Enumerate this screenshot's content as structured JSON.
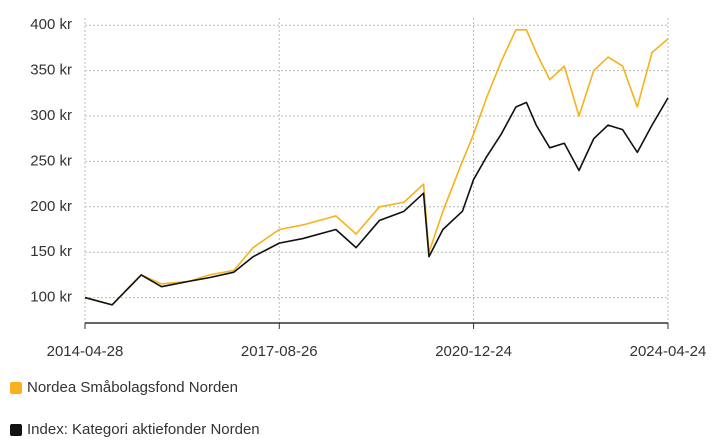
{
  "chart_data": {
    "type": "line",
    "x": [
      "2014-04-28",
      "2014-10-15",
      "2015-04-15",
      "2015-08-20",
      "2016-02-10",
      "2016-06-15",
      "2016-11-15",
      "2017-03-15",
      "2017-08-26",
      "2018-01-20",
      "2018-08-15",
      "2018-12-20",
      "2019-05-15",
      "2019-10-15",
      "2020-02-15",
      "2020-03-20",
      "2020-06-15",
      "2020-10-15",
      "2020-12-24",
      "2021-03-15",
      "2021-06-15",
      "2021-09-15",
      "2021-11-20",
      "2022-01-20",
      "2022-04-15",
      "2022-07-15",
      "2022-10-15",
      "2023-01-15",
      "2023-04-15",
      "2023-07-15",
      "2023-10-15",
      "2024-01-15",
      "2024-04-24"
    ],
    "series": [
      {
        "name": "Nordea Småbolagsfond Norden",
        "color": "#f5b21b",
        "values": [
          100,
          92,
          125,
          115,
          118,
          125,
          130,
          155,
          175,
          180,
          190,
          170,
          200,
          205,
          225,
          150,
          195,
          250,
          280,
          320,
          360,
          395,
          395,
          370,
          340,
          355,
          300,
          350,
          365,
          355,
          310,
          370,
          385
        ]
      },
      {
        "name": "Index: Kategori aktiefonder Norden",
        "color": "#111111",
        "values": [
          100,
          92,
          125,
          112,
          118,
          122,
          128,
          145,
          160,
          165,
          175,
          155,
          185,
          195,
          215,
          145,
          175,
          195,
          230,
          255,
          280,
          310,
          315,
          290,
          265,
          270,
          240,
          275,
          290,
          285,
          260,
          290,
          320
        ]
      }
    ],
    "xlim": [
      "2014-04-28",
      "2024-04-24"
    ],
    "xticks": [
      "2014-04-28",
      "2017-08-26",
      "2020-12-24",
      "2024-04-24"
    ],
    "ylim": [
      72,
      408
    ],
    "yticks": [
      {
        "value": 100,
        "label": "100 kr"
      },
      {
        "value": 150,
        "label": "150 kr"
      },
      {
        "value": 200,
        "label": "200 kr"
      },
      {
        "value": 250,
        "label": "250 kr"
      },
      {
        "value": 300,
        "label": "300 kr"
      },
      {
        "value": 350,
        "label": "350 kr"
      },
      {
        "value": 400,
        "label": "400 kr"
      }
    ],
    "grid": true
  }
}
